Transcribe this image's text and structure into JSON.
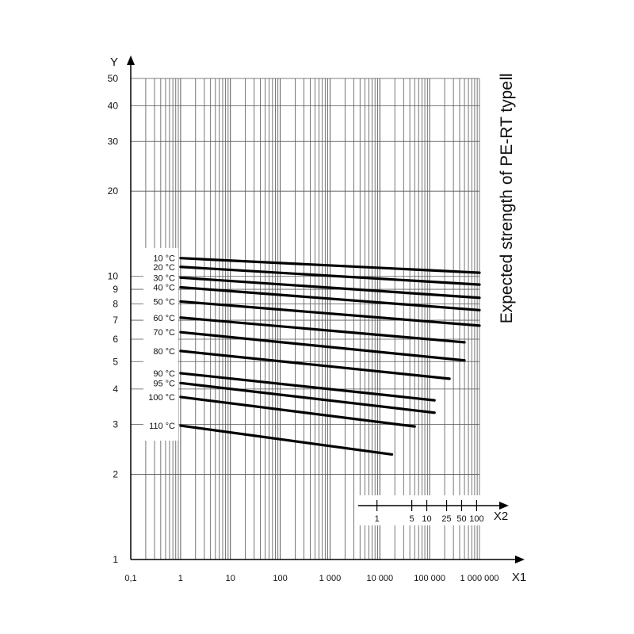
{
  "chart_data": {
    "type": "line",
    "title": "Expected strength of PE-RT typeⅡ",
    "x_scale": "log",
    "y_scale": "log",
    "xlim": [
      0.1,
      1000000
    ],
    "ylim": [
      1,
      50
    ],
    "x_axis_label": "X1",
    "y_axis_label": "Y",
    "x_ticks": [
      {
        "value": 0.1,
        "label": "0,1"
      },
      {
        "value": 1,
        "label": "1"
      },
      {
        "value": 10,
        "label": "10"
      },
      {
        "value": 100,
        "label": "100"
      },
      {
        "value": 1000,
        "label": "1 000"
      },
      {
        "value": 10000,
        "label": "10 000"
      },
      {
        "value": 100000,
        "label": "100 000"
      },
      {
        "value": 1000000,
        "label": "1 000 000"
      }
    ],
    "y_ticks": [
      {
        "value": 1,
        "label": "1"
      },
      {
        "value": 2,
        "label": "2"
      },
      {
        "value": 3,
        "label": "3"
      },
      {
        "value": 4,
        "label": "4"
      },
      {
        "value": 5,
        "label": "5"
      },
      {
        "value": 6,
        "label": "6"
      },
      {
        "value": 7,
        "label": "7"
      },
      {
        "value": 8,
        "label": "8"
      },
      {
        "value": 9,
        "label": "9"
      },
      {
        "value": 10,
        "label": "10"
      },
      {
        "value": 20,
        "label": "20"
      },
      {
        "value": 30,
        "label": "30"
      },
      {
        "value": 40,
        "label": "40"
      },
      {
        "value": 50,
        "label": "50"
      }
    ],
    "secondary_x_axis": {
      "label": "X2",
      "ticks": [
        {
          "value": 1,
          "label": "1",
          "x1_equivalent": 8760
        },
        {
          "value": 5,
          "label": "5",
          "x1_equivalent": 43800
        },
        {
          "value": 10,
          "label": "10",
          "x1_equivalent": 87600
        },
        {
          "value": 25,
          "label": "25",
          "x1_equivalent": 219000
        },
        {
          "value": 50,
          "label": "50",
          "x1_equivalent": 438000
        },
        {
          "value": 100,
          "label": "100",
          "x1_equivalent": 876000
        }
      ]
    },
    "grid": true,
    "series": [
      {
        "name": "10 °C",
        "x": [
          1,
          1000000
        ],
        "y": [
          11.6,
          10.3
        ]
      },
      {
        "name": "20 °C",
        "x": [
          1,
          1000000
        ],
        "y": [
          10.8,
          9.35
        ]
      },
      {
        "name": "30 °C",
        "x": [
          1,
          1000000
        ],
        "y": [
          9.9,
          8.4
        ]
      },
      {
        "name": "40 °C",
        "x": [
          1,
          1000000
        ],
        "y": [
          9.15,
          7.6
        ]
      },
      {
        "name": "50 °C",
        "x": [
          1,
          1000000
        ],
        "y": [
          8.15,
          6.7
        ]
      },
      {
        "name": "60 °C",
        "x": [
          1,
          500000
        ],
        "y": [
          7.15,
          5.85
        ]
      },
      {
        "name": "70 °C",
        "x": [
          1,
          500000
        ],
        "y": [
          6.35,
          5.05
        ]
      },
      {
        "name": "80 °C",
        "x": [
          1,
          250000
        ],
        "y": [
          5.45,
          4.35
        ]
      },
      {
        "name": "90 °C",
        "x": [
          1,
          125000
        ],
        "y": [
          4.55,
          3.65
        ]
      },
      {
        "name": "95 °C",
        "x": [
          1,
          125000
        ],
        "y": [
          4.2,
          3.3
        ]
      },
      {
        "name": "100 °C",
        "x": [
          1,
          50000
        ],
        "y": [
          3.75,
          2.95
        ]
      },
      {
        "name": "110 °C",
        "x": [
          1,
          17500
        ],
        "y": [
          2.97,
          2.35
        ]
      }
    ]
  }
}
